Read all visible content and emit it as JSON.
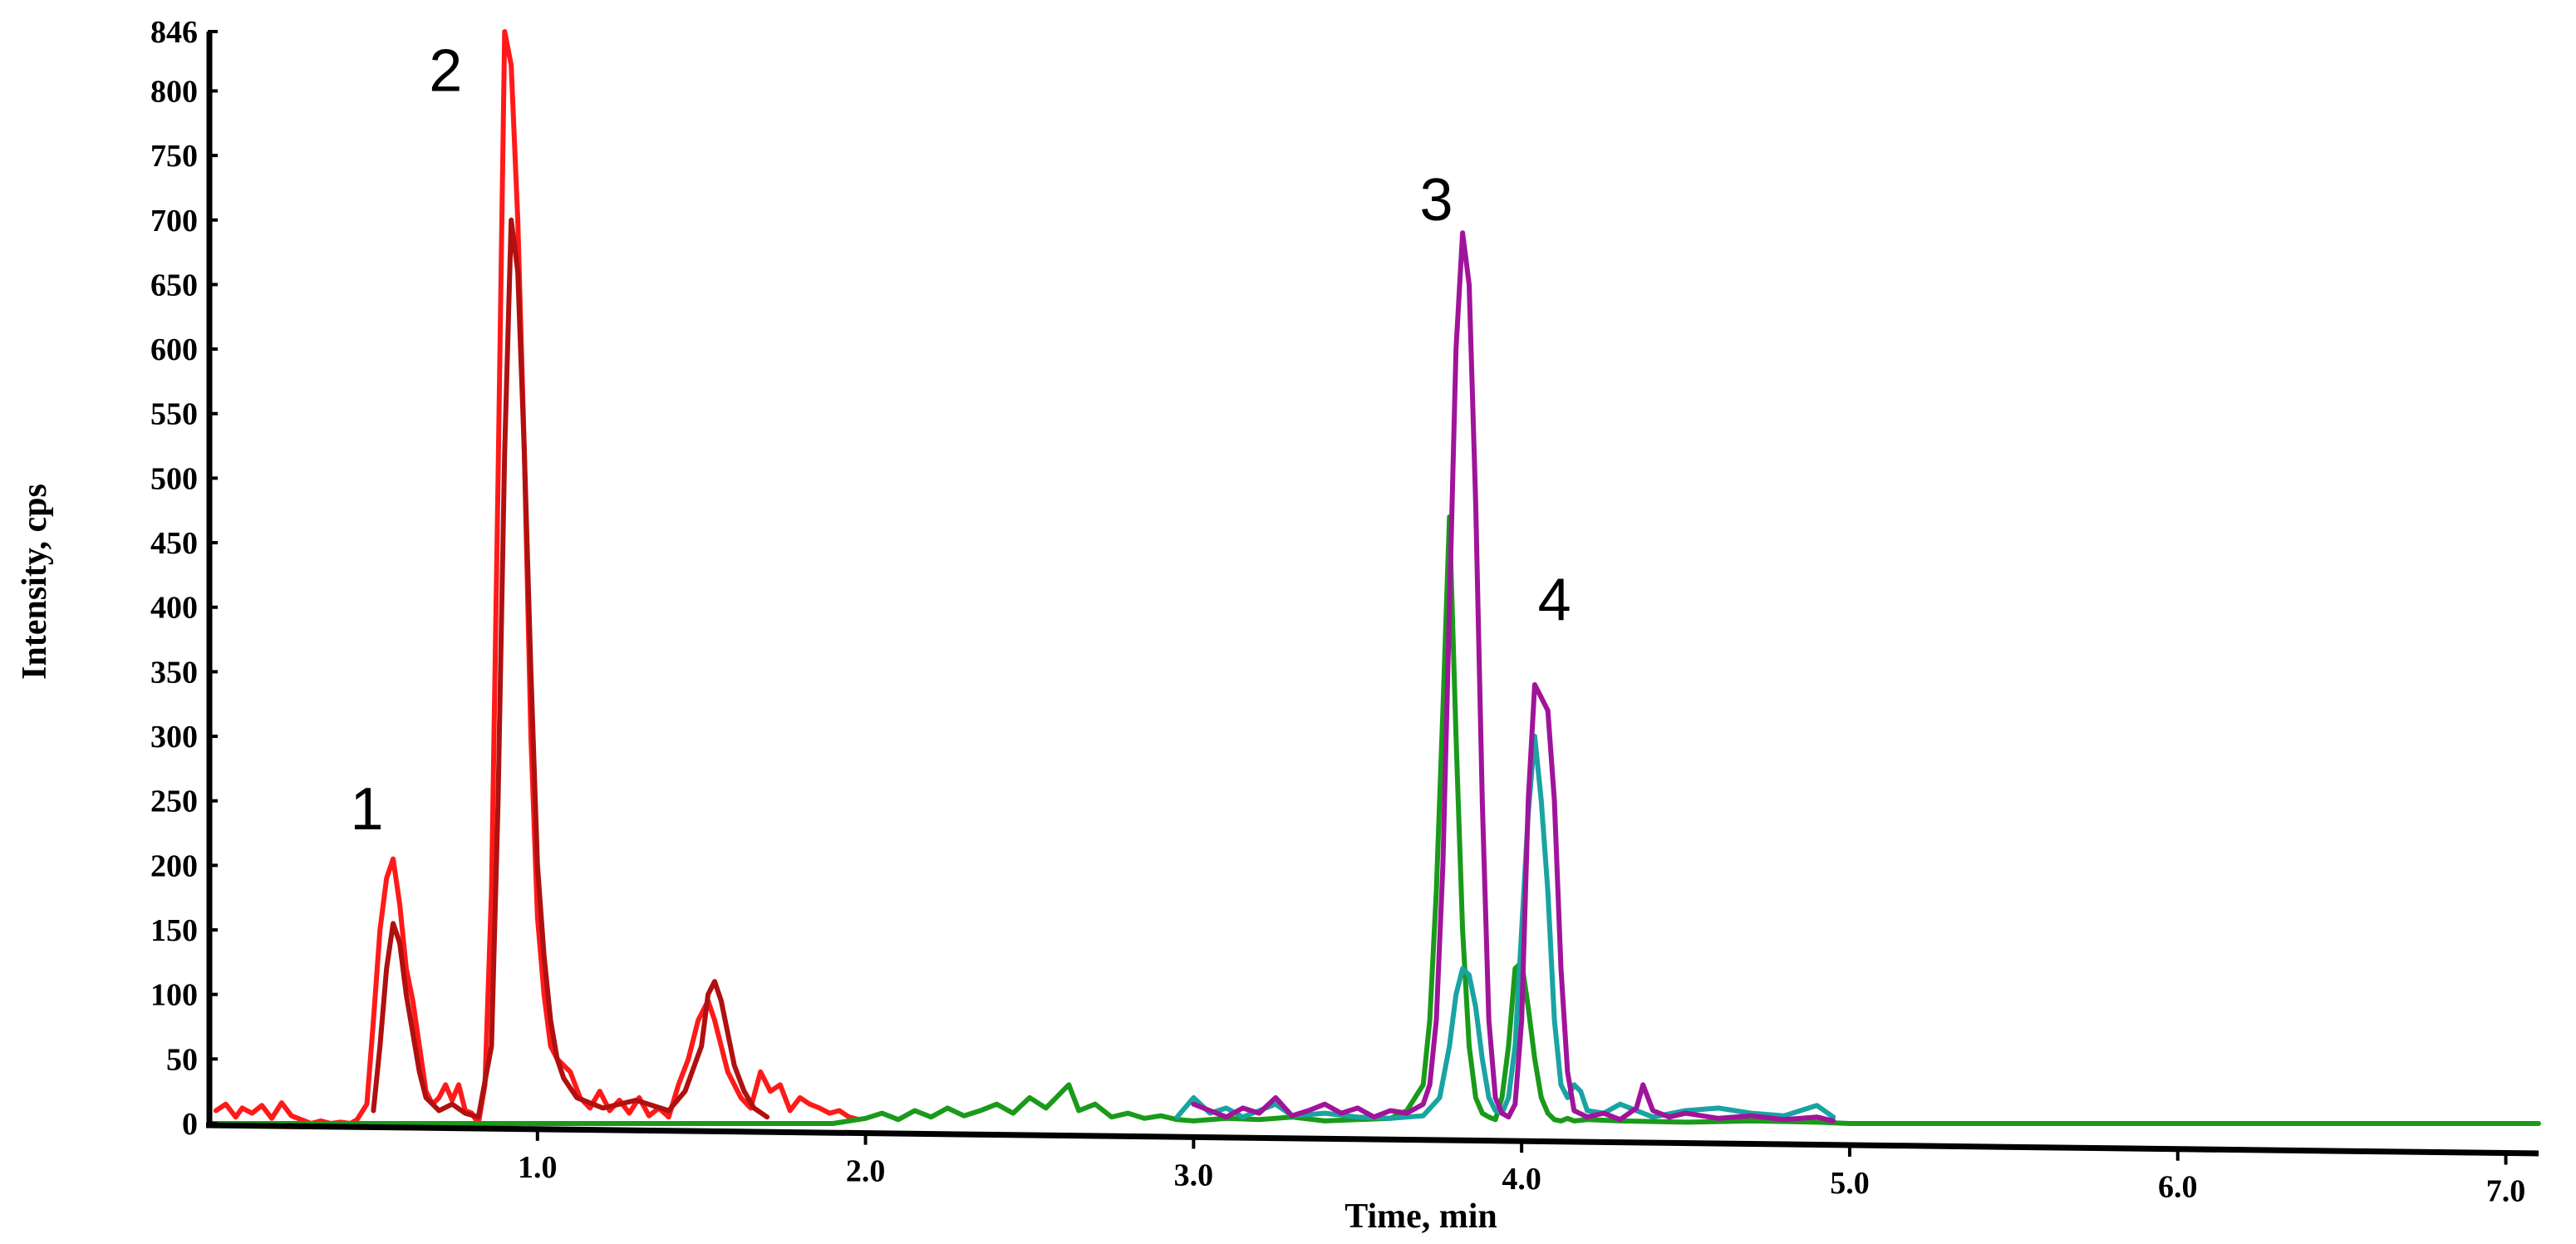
{
  "chart_data": {
    "type": "line",
    "title": "",
    "xlabel": "Time, min",
    "ylabel": "Intensity, cps",
    "xlim": [
      0.0,
      7.1
    ],
    "ylim": [
      0,
      846
    ],
    "x_ticks": [
      {
        "value": 1.0,
        "label": "1.0"
      },
      {
        "value": 2.0,
        "label": "2.0"
      },
      {
        "value": 3.0,
        "label": "3.0"
      },
      {
        "value": 4.0,
        "label": "4.0"
      },
      {
        "value": 5.0,
        "label": "5.0"
      },
      {
        "value": 6.0,
        "label": "6.0"
      },
      {
        "value": 7.0,
        "label": "7.0"
      }
    ],
    "y_ticks": [
      {
        "value": 0,
        "label": "0"
      },
      {
        "value": 50,
        "label": "50"
      },
      {
        "value": 100,
        "label": "100"
      },
      {
        "value": 150,
        "label": "150"
      },
      {
        "value": 200,
        "label": "200"
      },
      {
        "value": 250,
        "label": "250"
      },
      {
        "value": 300,
        "label": "300"
      },
      {
        "value": 350,
        "label": "350"
      },
      {
        "value": 400,
        "label": "400"
      },
      {
        "value": 450,
        "label": "450"
      },
      {
        "value": 500,
        "label": "500"
      },
      {
        "value": 550,
        "label": "550"
      },
      {
        "value": 600,
        "label": "600"
      },
      {
        "value": 650,
        "label": "650"
      },
      {
        "value": 700,
        "label": "700"
      },
      {
        "value": 750,
        "label": "750"
      },
      {
        "value": 800,
        "label": "800"
      },
      {
        "value": 846,
        "label": "846"
      }
    ],
    "grid": false,
    "legend": "none",
    "series": [
      {
        "color": "#ff1a1a",
        "x": [
          0.02,
          0.05,
          0.08,
          0.1,
          0.13,
          0.16,
          0.19,
          0.22,
          0.25,
          0.28,
          0.31,
          0.34,
          0.37,
          0.4,
          0.43,
          0.45,
          0.48,
          0.5,
          0.52,
          0.54,
          0.56,
          0.58,
          0.6,
          0.62,
          0.64,
          0.66,
          0.68,
          0.7,
          0.72,
          0.74,
          0.76,
          0.78,
          0.8,
          0.82,
          0.84,
          0.86,
          0.88,
          0.9,
          0.92,
          0.94,
          0.96,
          0.98,
          1.0,
          1.02,
          1.04,
          1.06,
          1.08,
          1.1,
          1.13,
          1.16,
          1.19,
          1.22,
          1.25,
          1.28,
          1.31,
          1.34,
          1.37,
          1.4,
          1.43,
          1.46,
          1.49,
          1.52,
          1.54,
          1.56,
          1.58,
          1.6,
          1.62,
          1.65,
          1.68,
          1.71,
          1.74,
          1.77,
          1.8,
          1.83,
          1.86,
          1.89,
          1.92,
          1.95,
          1.98
        ],
        "y": [
          10,
          15,
          5,
          12,
          8,
          14,
          4,
          16,
          6,
          3,
          0,
          2,
          0,
          1,
          0,
          3,
          15,
          80,
          150,
          190,
          205,
          170,
          120,
          95,
          60,
          25,
          15,
          20,
          30,
          18,
          30,
          10,
          8,
          0,
          30,
          180,
          500,
          846,
          820,
          700,
          520,
          300,
          160,
          100,
          60,
          50,
          45,
          40,
          20,
          12,
          25,
          10,
          18,
          8,
          20,
          6,
          12,
          5,
          30,
          50,
          80,
          95,
          80,
          60,
          40,
          30,
          20,
          12,
          40,
          25,
          30,
          10,
          20,
          15,
          12,
          8,
          10,
          5,
          3
        ]
      },
      {
        "color": "#b01010",
        "x": [
          0.5,
          0.52,
          0.54,
          0.56,
          0.58,
          0.6,
          0.62,
          0.64,
          0.66,
          0.7,
          0.74,
          0.78,
          0.82,
          0.86,
          0.88,
          0.9,
          0.92,
          0.94,
          0.96,
          0.98,
          1.0,
          1.02,
          1.04,
          1.06,
          1.08,
          1.12,
          1.2,
          1.3,
          1.4,
          1.45,
          1.5,
          1.52,
          1.54,
          1.56,
          1.58,
          1.6,
          1.63,
          1.66,
          1.7
        ],
        "y": [
          10,
          60,
          120,
          155,
          140,
          100,
          70,
          40,
          20,
          10,
          15,
          8,
          5,
          60,
          250,
          520,
          700,
          660,
          520,
          350,
          200,
          130,
          80,
          50,
          35,
          20,
          12,
          18,
          10,
          25,
          60,
          100,
          110,
          95,
          70,
          45,
          25,
          12,
          5
        ]
      },
      {
        "color": "#1a9a1a",
        "x": [
          0.0,
          0.5,
          1.0,
          1.5,
          1.9,
          1.95,
          2.0,
          2.05,
          2.1,
          2.15,
          2.2,
          2.25,
          2.3,
          2.35,
          2.4,
          2.45,
          2.5,
          2.55,
          2.6,
          2.62,
          2.65,
          2.7,
          2.75,
          2.8,
          2.85,
          2.9,
          2.95,
          3.0,
          3.1,
          3.2,
          3.3,
          3.4,
          3.5,
          3.6,
          3.65,
          3.7,
          3.72,
          3.74,
          3.76,
          3.78,
          3.8,
          3.82,
          3.84,
          3.86,
          3.88,
          3.9,
          3.92,
          3.94,
          3.96,
          3.98,
          4.0,
          4.02,
          4.04,
          4.06,
          4.08,
          4.1,
          4.12,
          4.14,
          4.16,
          4.2,
          4.3,
          4.5,
          4.7,
          4.9,
          5.0,
          5.5,
          6.0,
          6.5,
          7.1
        ],
        "y": [
          0,
          0,
          0,
          0,
          0,
          2,
          4,
          8,
          3,
          10,
          5,
          12,
          6,
          10,
          15,
          8,
          20,
          12,
          25,
          30,
          10,
          15,
          5,
          8,
          4,
          6,
          3,
          2,
          4,
          3,
          5,
          2,
          3,
          4,
          10,
          30,
          80,
          180,
          320,
          470,
          300,
          150,
          60,
          20,
          8,
          5,
          3,
          20,
          60,
          120,
          125,
          90,
          50,
          20,
          8,
          3,
          2,
          4,
          2,
          3,
          2,
          1,
          2,
          1,
          0,
          0,
          0,
          0,
          0
        ]
      },
      {
        "color": "#1aa3a3",
        "x": [
          2.95,
          3.0,
          3.05,
          3.1,
          3.15,
          3.2,
          3.25,
          3.3,
          3.4,
          3.5,
          3.6,
          3.7,
          3.75,
          3.78,
          3.8,
          3.82,
          3.84,
          3.86,
          3.88,
          3.9,
          3.92,
          3.94,
          3.96,
          3.98,
          4.0,
          4.02,
          4.04,
          4.06,
          4.08,
          4.1,
          4.12,
          4.14,
          4.16,
          4.18,
          4.2,
          4.25,
          4.3,
          4.4,
          4.5,
          4.6,
          4.7,
          4.8,
          4.85,
          4.9,
          4.95
        ],
        "y": [
          5,
          20,
          8,
          12,
          5,
          10,
          15,
          6,
          8,
          5,
          4,
          6,
          20,
          60,
          100,
          120,
          115,
          90,
          50,
          20,
          10,
          8,
          20,
          60,
          150,
          240,
          300,
          250,
          180,
          80,
          30,
          20,
          30,
          25,
          10,
          8,
          15,
          5,
          10,
          12,
          8,
          6,
          10,
          14,
          5
        ]
      },
      {
        "color": "#a0149a",
        "x": [
          3.0,
          3.05,
          3.1,
          3.15,
          3.2,
          3.25,
          3.3,
          3.35,
          3.4,
          3.45,
          3.5,
          3.55,
          3.6,
          3.65,
          3.7,
          3.72,
          3.74,
          3.76,
          3.78,
          3.8,
          3.82,
          3.84,
          3.86,
          3.88,
          3.9,
          3.92,
          3.94,
          3.96,
          3.98,
          4.0,
          4.02,
          4.04,
          4.06,
          4.08,
          4.1,
          4.12,
          4.14,
          4.16,
          4.2,
          4.25,
          4.3,
          4.35,
          4.37,
          4.4,
          4.45,
          4.5,
          4.6,
          4.7,
          4.8,
          4.9,
          4.95
        ],
        "y": [
          15,
          10,
          5,
          12,
          8,
          20,
          6,
          10,
          15,
          8,
          12,
          5,
          10,
          8,
          15,
          30,
          80,
          200,
          400,
          600,
          690,
          650,
          480,
          250,
          80,
          20,
          8,
          5,
          15,
          80,
          250,
          340,
          330,
          320,
          250,
          120,
          40,
          10,
          5,
          8,
          3,
          12,
          30,
          10,
          5,
          8,
          4,
          6,
          3,
          5,
          2
        ]
      }
    ],
    "annotations": [
      {
        "text": "1",
        "x": 0.48,
        "y": 228
      },
      {
        "text": "2",
        "x": 0.72,
        "y": 800
      },
      {
        "text": "3",
        "x": 3.74,
        "y": 700
      },
      {
        "text": "4",
        "x": 4.1,
        "y": 390
      }
    ]
  }
}
